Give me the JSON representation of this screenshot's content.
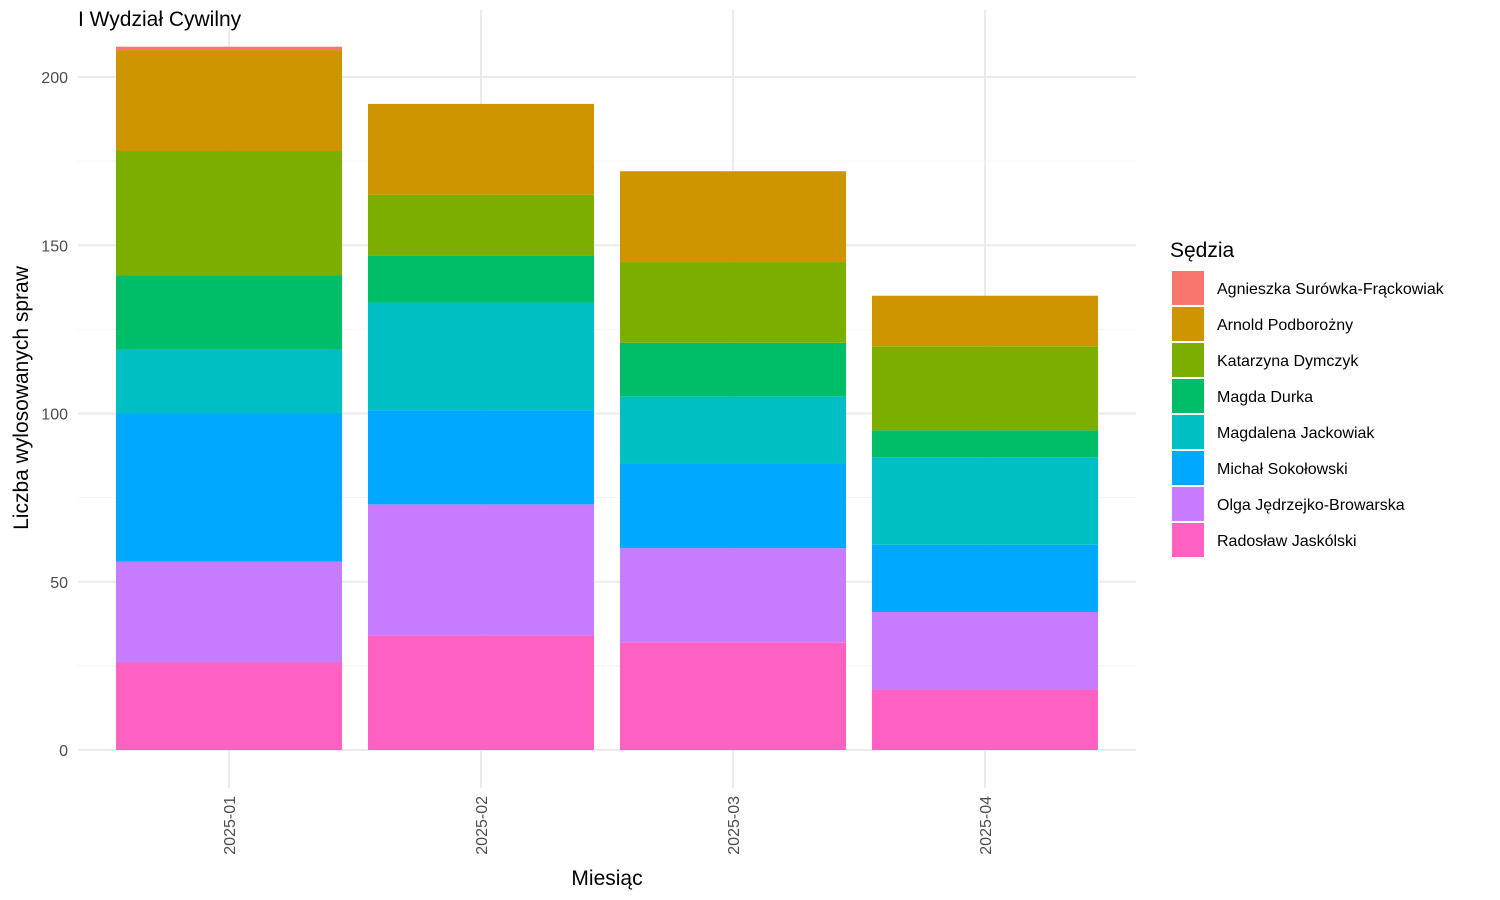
{
  "chart_data": {
    "type": "bar",
    "stacked": true,
    "title": "I Wydział Cywilny",
    "xlabel": "Miesiąc",
    "ylabel": "Liczba wylosowanych spraw",
    "categories": [
      "2025-01",
      "2025-02",
      "2025-03",
      "2025-04"
    ],
    "ylim": [
      0,
      210
    ],
    "yticks": [
      0,
      50,
      100,
      150,
      200
    ],
    "grid": true,
    "legend": {
      "title": "Sędzia",
      "position": "right"
    },
    "series": [
      {
        "name": "Radosław Jaskólski",
        "color": "#FF61C3",
        "values": [
          26,
          34,
          32,
          18
        ]
      },
      {
        "name": "Olga Jędrzejko-Browarska",
        "color": "#C77CFF",
        "values": [
          30,
          39,
          28,
          23
        ]
      },
      {
        "name": "Michał Sokołowski",
        "color": "#00A9FF",
        "values": [
          44,
          28,
          25,
          20
        ]
      },
      {
        "name": "Magdalena Jackowiak",
        "color": "#00BFC4",
        "values": [
          19,
          32,
          20,
          26
        ]
      },
      {
        "name": "Magda Durka",
        "color": "#00BE67",
        "values": [
          22,
          14,
          16,
          8
        ]
      },
      {
        "name": "Katarzyna Dymczyk",
        "color": "#7CAE00",
        "values": [
          37,
          18,
          24,
          25
        ]
      },
      {
        "name": "Arnold Podborożny",
        "color": "#CD9600",
        "values": [
          30,
          27,
          27,
          15
        ]
      },
      {
        "name": "Agnieszka Surówka-Frąckowiak",
        "color": "#F8766D",
        "values": [
          1,
          0,
          0,
          0
        ]
      }
    ]
  }
}
